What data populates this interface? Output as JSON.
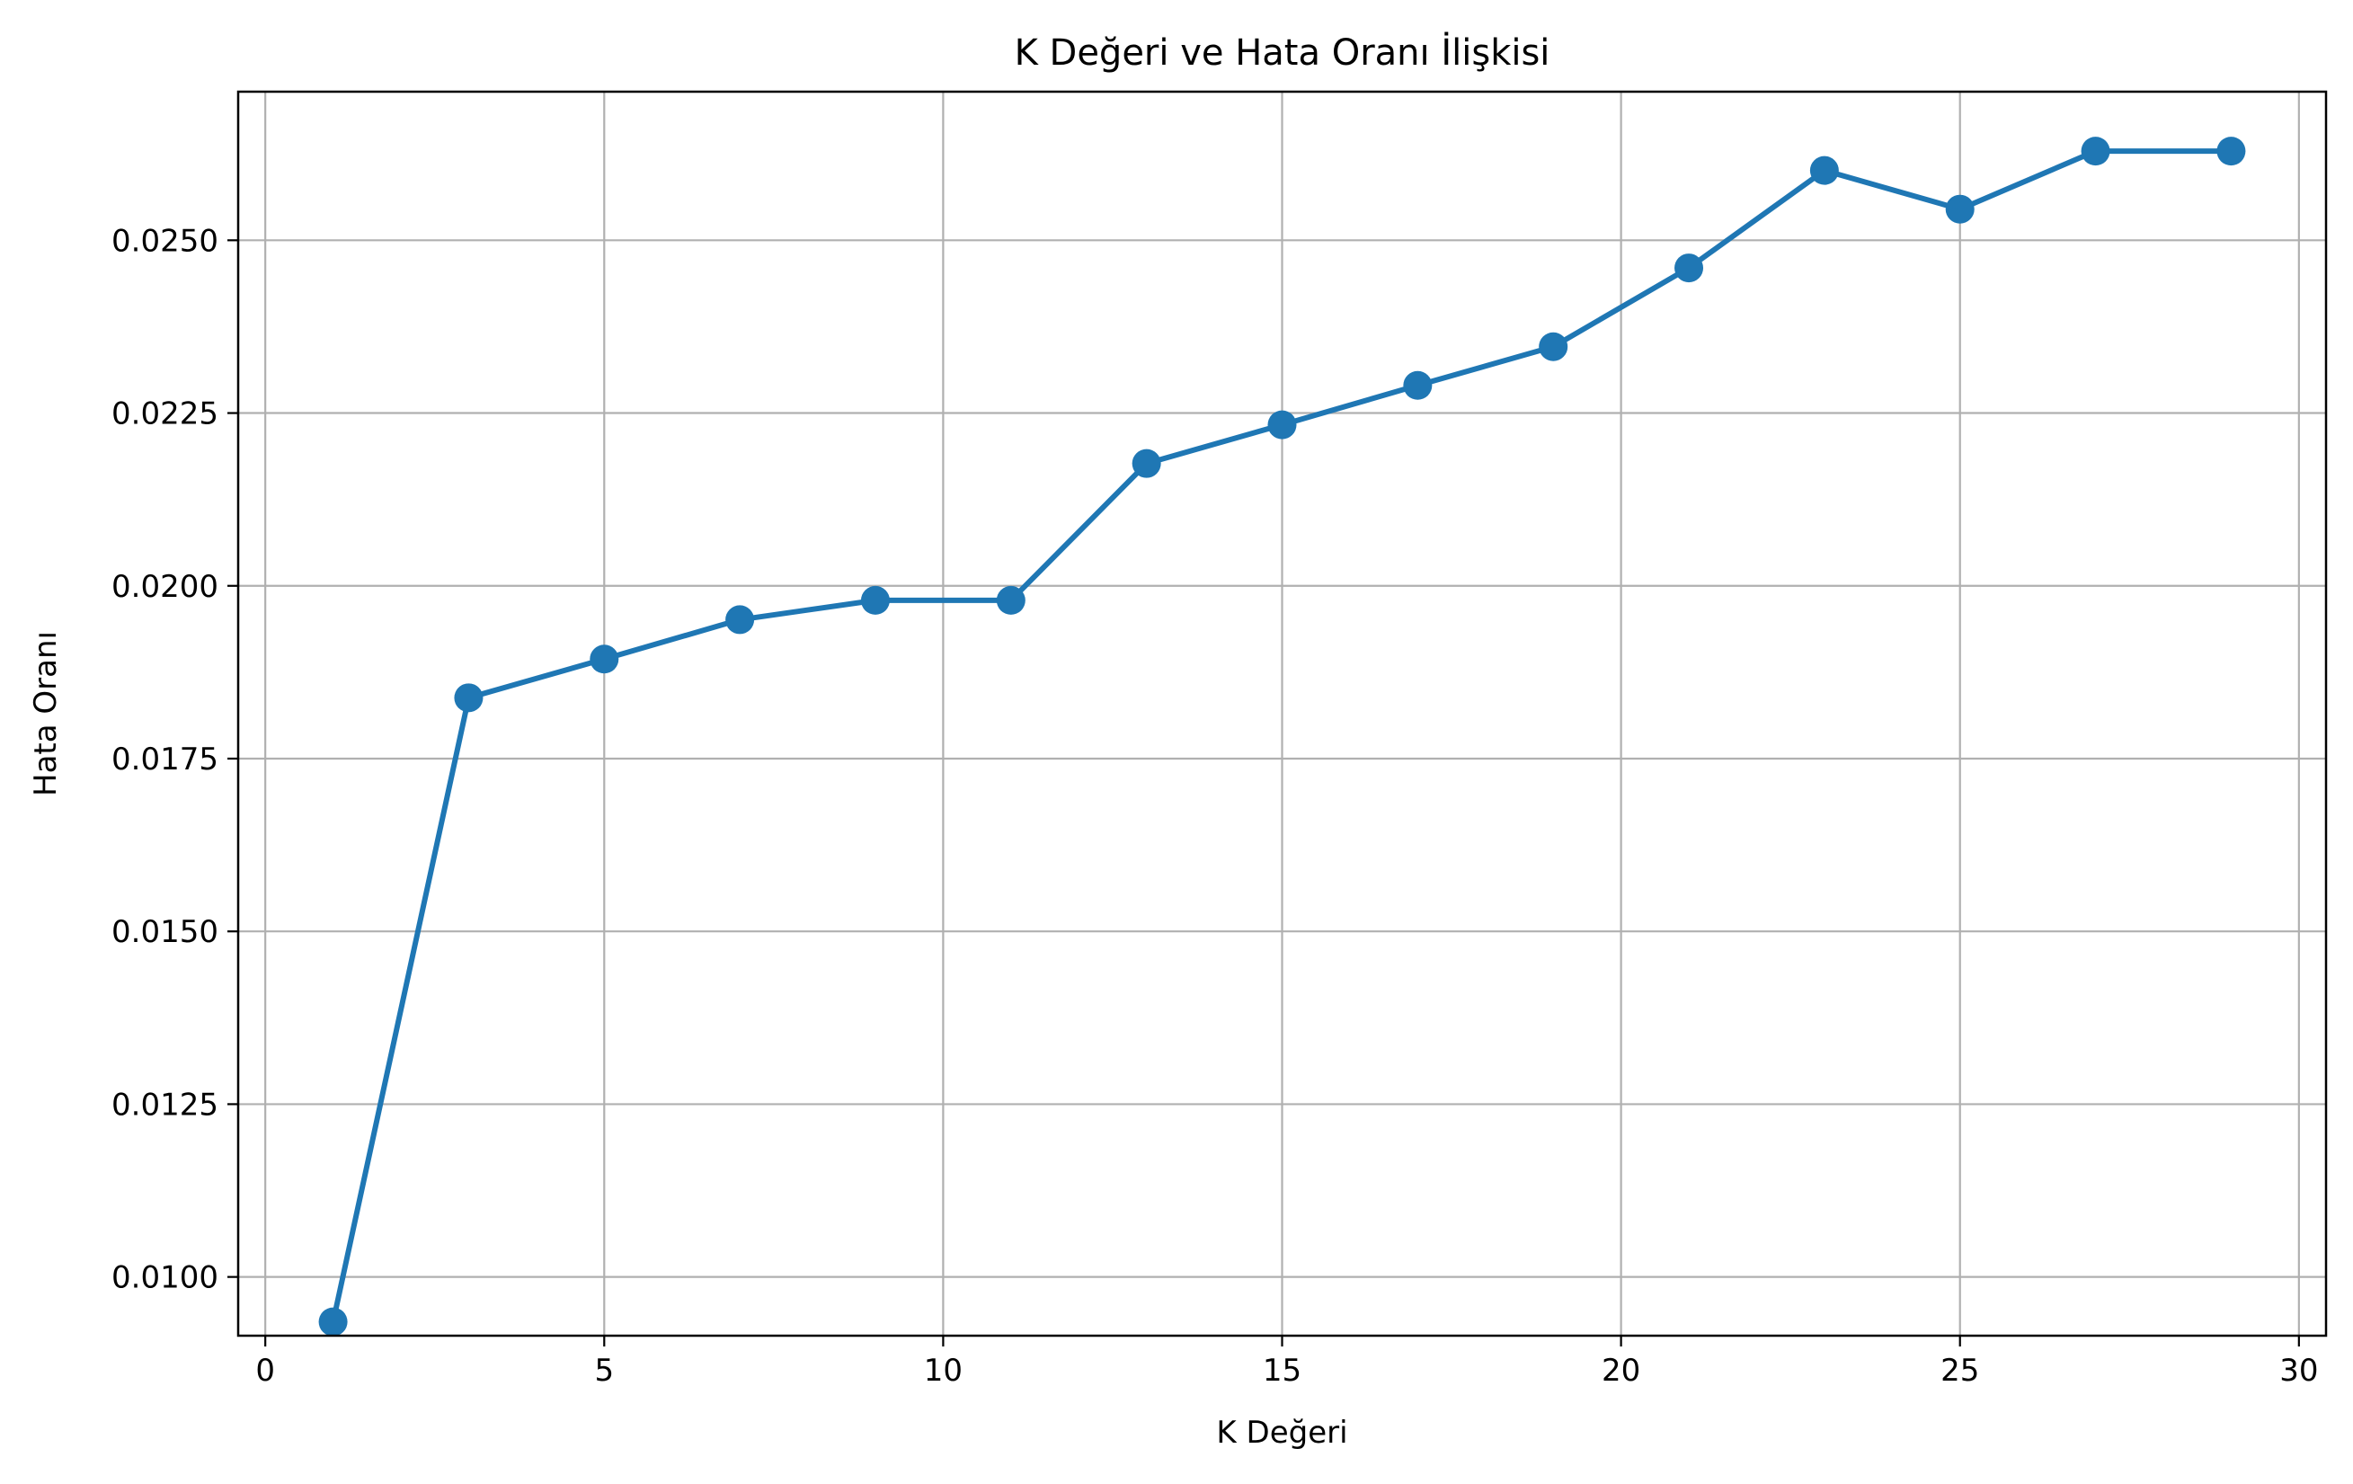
{
  "chart_data": {
    "type": "line",
    "title": "K Değeri ve Hata Oranı İlişkisi",
    "xlabel": "K Değeri",
    "ylabel": "Hata Oranı",
    "xlim": [
      -0.4,
      30.4
    ],
    "ylim": [
      0.00915,
      0.02715
    ],
    "grid": true,
    "x_ticks": [
      0,
      5,
      10,
      15,
      20,
      25,
      30
    ],
    "x_tick_labels": [
      "0",
      "5",
      "10",
      "15",
      "20",
      "25",
      "30"
    ],
    "y_ticks": [
      0.01,
      0.0125,
      0.015,
      0.0175,
      0.02,
      0.0225,
      0.025
    ],
    "y_tick_labels": [
      "0.0100",
      "0.0125",
      "0.0150",
      "0.0175",
      "0.0200",
      "0.0225",
      "0.0250"
    ],
    "series": [
      {
        "color": "#1f77b4",
        "marker": "circle",
        "x": [
          1,
          3,
          5,
          7,
          9,
          11,
          13,
          15,
          17,
          19,
          21,
          23,
          25,
          27,
          29
        ],
        "y": [
          0.00935,
          0.01838,
          0.01894,
          0.01951,
          0.01979,
          0.01979,
          0.02177,
          0.02233,
          0.0229,
          0.02346,
          0.0246,
          0.02601,
          0.02545,
          0.02629,
          0.02629
        ]
      }
    ]
  }
}
